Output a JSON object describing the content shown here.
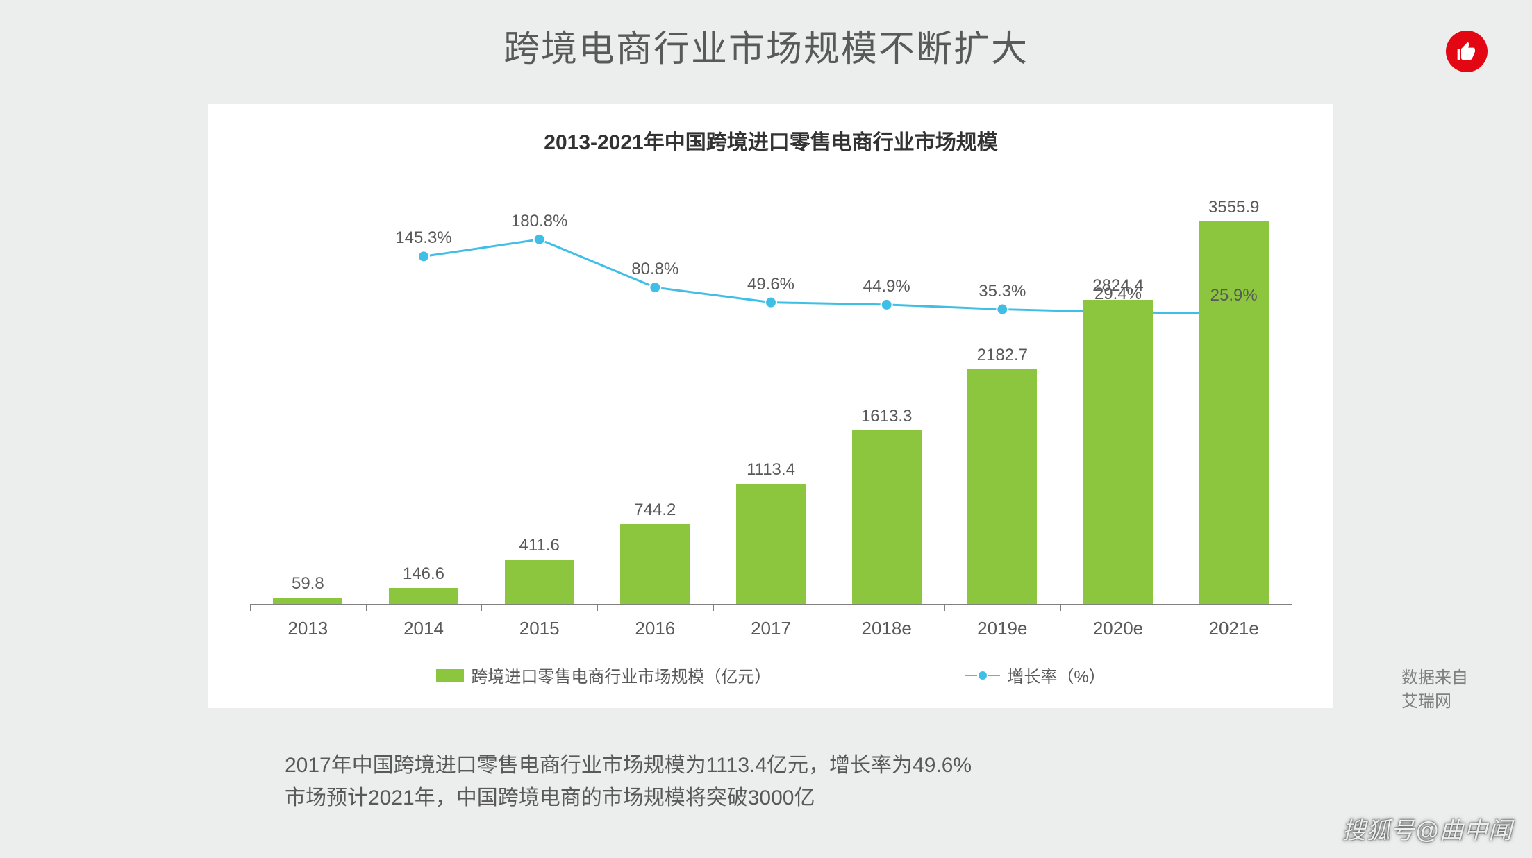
{
  "page": {
    "title": "跨境电商行业市场规模不断扩大",
    "background_color": "#eceded"
  },
  "like_badge": {
    "bg_color": "#e30613",
    "icon_color": "#ffffff"
  },
  "chart": {
    "type": "bar+line",
    "title": "2013-2021年中国跨境进口零售电商行业市场规模",
    "title_fontsize": 30,
    "title_color": "#333333",
    "background_color": "#ffffff",
    "categories": [
      "2013",
      "2014",
      "2015",
      "2016",
      "2017",
      "2018e",
      "2019e",
      "2020e",
      "2021e"
    ],
    "bar_values": [
      59.8,
      146.6,
      411.6,
      744.2,
      1113.4,
      1613.3,
      2182.7,
      2824.4,
      3555.9
    ],
    "bar_color": "#8cc63f",
    "bar_width_ratio": 0.6,
    "bar_y_max": 4000,
    "growth_values": [
      null,
      145.3,
      180.8,
      80.8,
      49.6,
      44.9,
      35.3,
      29.4,
      25.9
    ],
    "growth_label_suffix": "%",
    "growth_y_min": 0,
    "growth_y_max": 260,
    "line_color": "#3fbfe6",
    "marker_color": "#3fbfe6",
    "marker_border": "#ffffff",
    "marker_radius": 8,
    "line_width": 3,
    "axis_color": "#808080",
    "label_color": "#595959",
    "label_fontsize": 24,
    "xlabel_fontsize": 26,
    "legend": {
      "bar_label": "跨境进口零售电商行业市场规模（亿元）",
      "line_label": "增长率（%）"
    }
  },
  "source": {
    "line1": "数据来自",
    "line2": "艾瑞网"
  },
  "caption": {
    "line1": "2017年中国跨境进口零售电商行业市场规模为1113.4亿元，增长率为49.6%",
    "line2": "市场预计2021年，中国跨境电商的市场规模将突破3000亿"
  },
  "watermark": "搜狐号@曲中闻"
}
